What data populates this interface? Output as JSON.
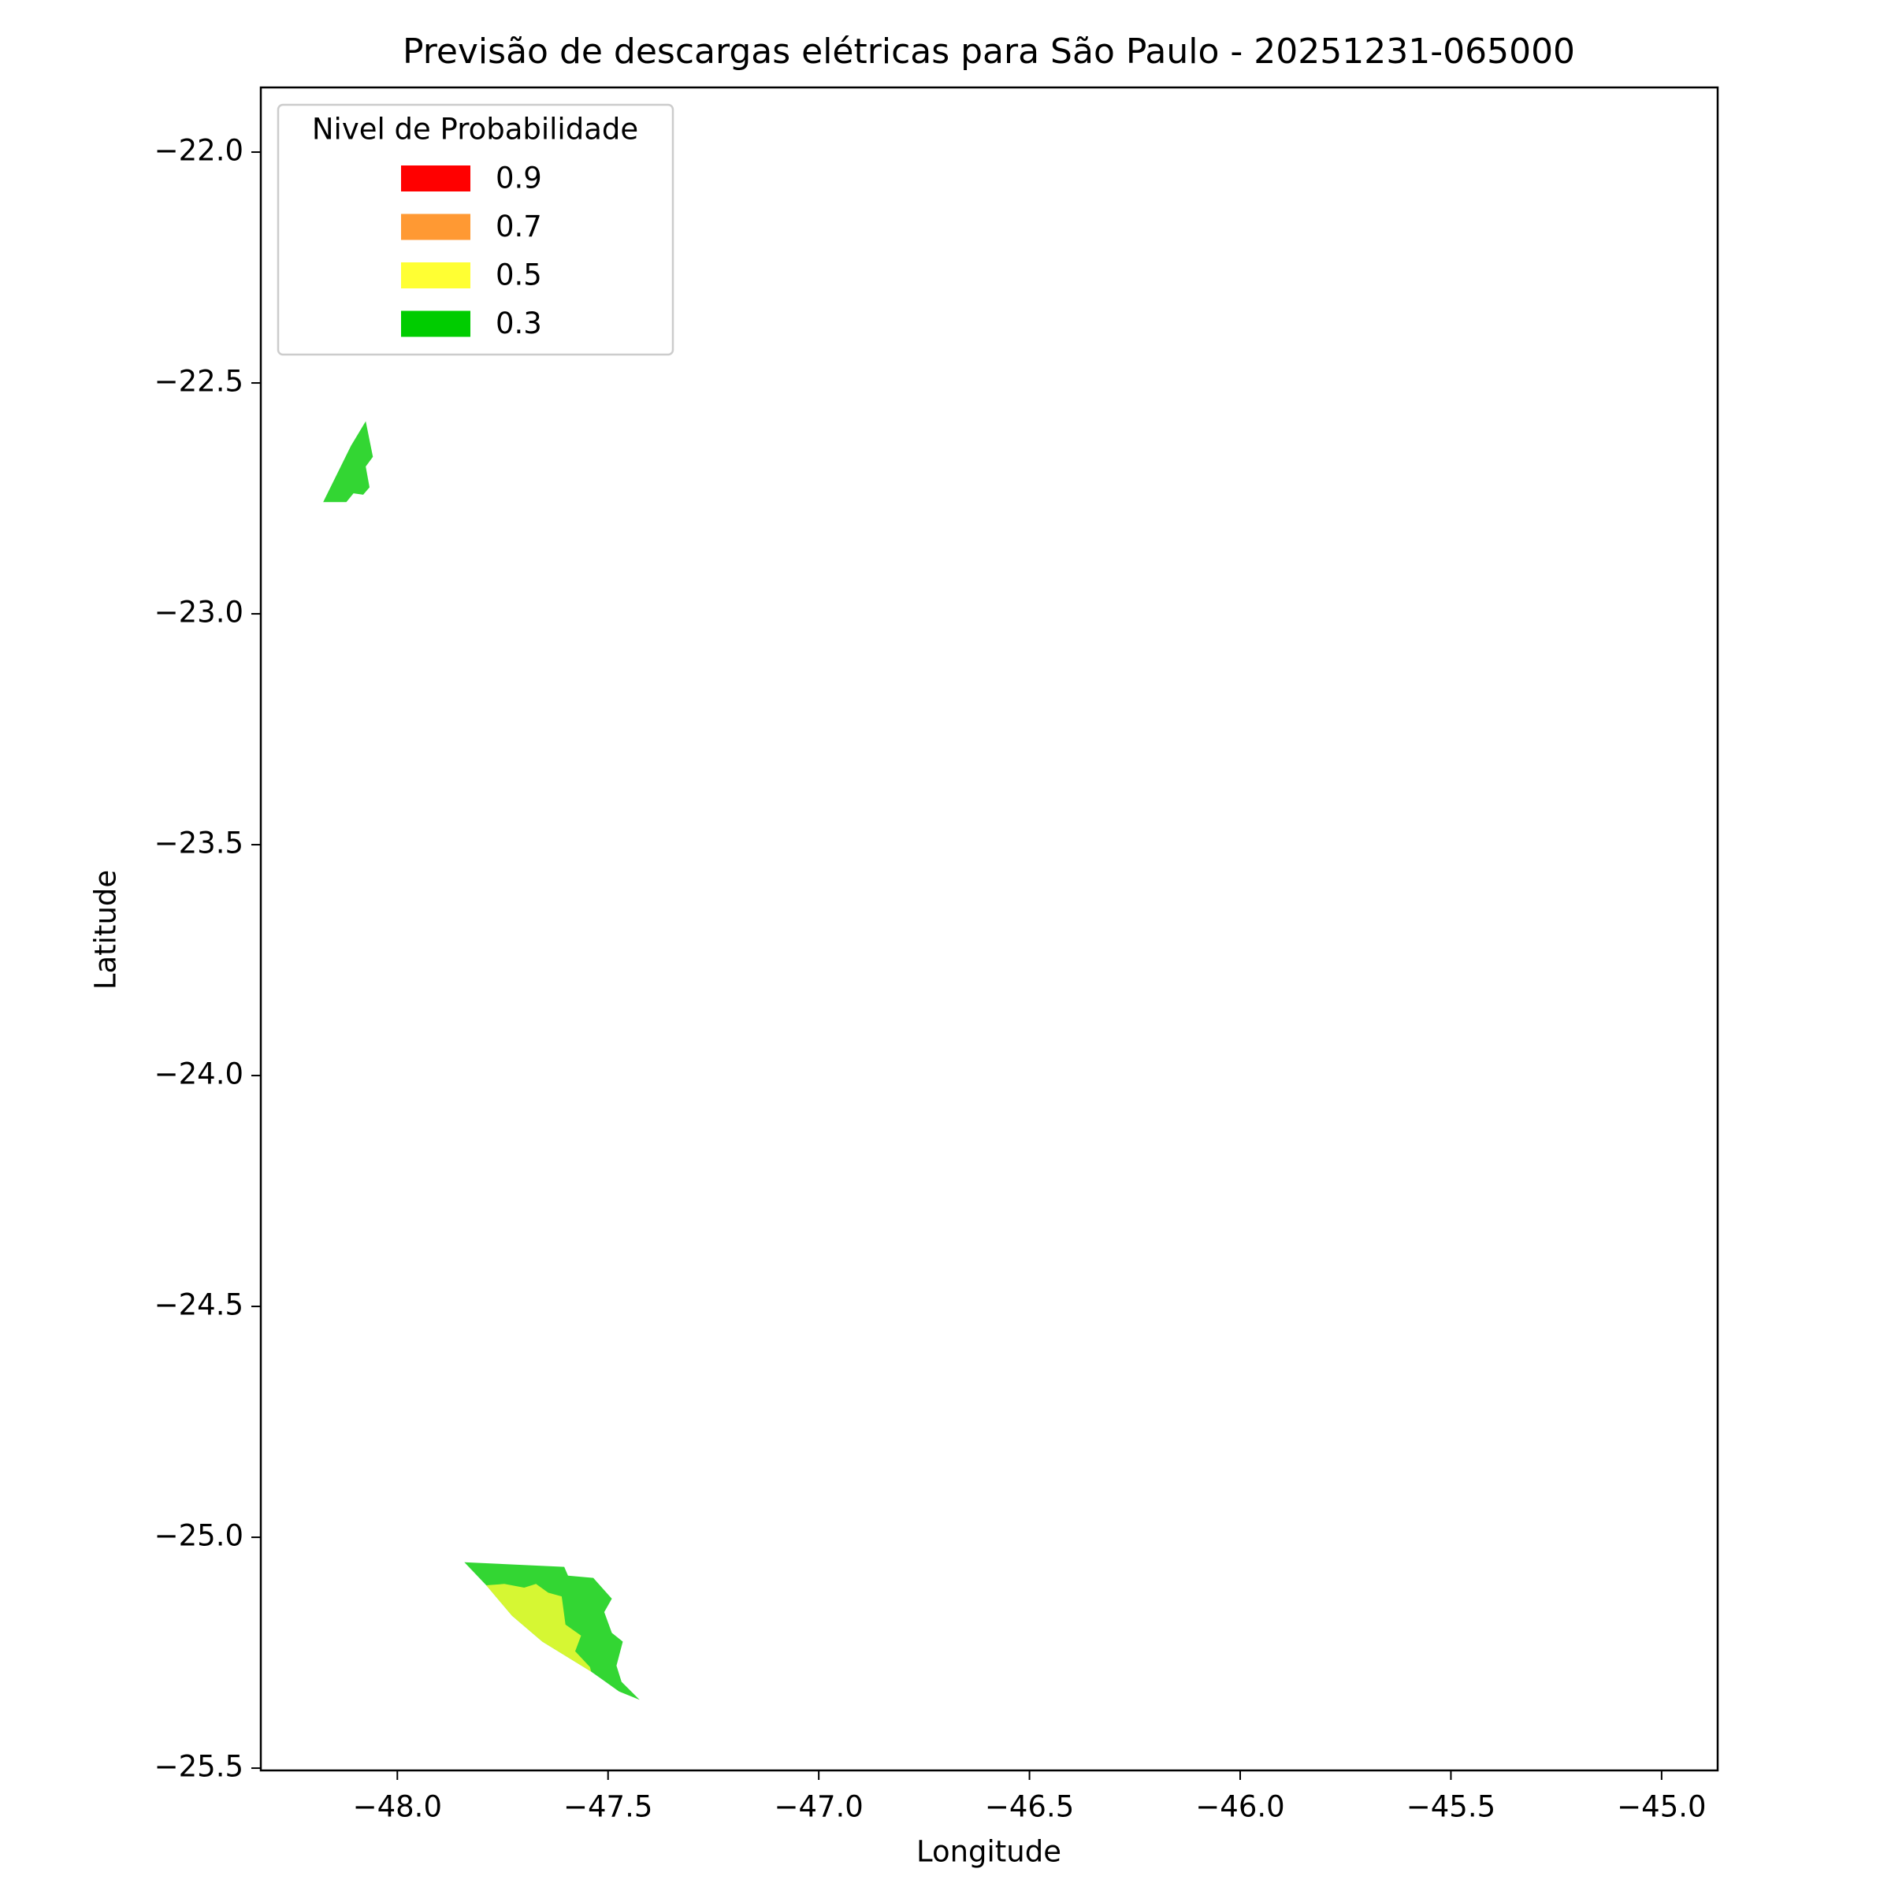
{
  "chart_data": {
    "type": "polygon",
    "title": "Previsão de descargas elétricas para São Paulo - 20251231-065000",
    "x_label": "Longitude",
    "y_label": "Latitude",
    "legend_title": "Nivel de Probabilidade",
    "legend": "upper left",
    "fill_opacity": 0.8,
    "xlim": [
      -48.324,
      -44.867
    ],
    "ylim": [
      -25.505,
      -21.86
    ],
    "xticks": [
      {
        "value": -48.0,
        "label": "−48.0"
      },
      {
        "value": -47.5,
        "label": "−47.5"
      },
      {
        "value": -47.0,
        "label": "−47.0"
      },
      {
        "value": -46.5,
        "label": "−46.5"
      },
      {
        "value": -46.0,
        "label": "−46.0"
      },
      {
        "value": -45.5,
        "label": "−45.5"
      },
      {
        "value": -45.0,
        "label": "−45.0"
      }
    ],
    "yticks": [
      {
        "value": -22.0,
        "label": "−22.0"
      },
      {
        "value": -22.5,
        "label": "−22.5"
      },
      {
        "value": -23.0,
        "label": "−23.0"
      },
      {
        "value": -23.5,
        "label": "−23.5"
      },
      {
        "value": -24.0,
        "label": "−24.0"
      },
      {
        "value": -24.5,
        "label": "−24.5"
      },
      {
        "value": -25.0,
        "label": "−25.0"
      },
      {
        "value": -25.5,
        "label": "−25.5"
      }
    ],
    "series": [
      {
        "name": "0.9",
        "color": "#ff0000",
        "polygons": []
      },
      {
        "name": "0.7",
        "color": "#ff9933",
        "polygons": []
      },
      {
        "name": "0.5",
        "color": "#ffff33",
        "polygons": [
          {
            "x": [
              -47.789,
              -47.746,
              -47.699,
              -47.671,
              -47.642,
              -47.61,
              -47.601,
              -47.564,
              -47.578,
              -47.543,
              -47.54,
              -47.656,
              -47.728
            ],
            "y": [
              -25.104,
              -25.101,
              -25.109,
              -25.101,
              -25.12,
              -25.128,
              -25.189,
              -25.213,
              -25.247,
              -25.281,
              -25.291,
              -25.226,
              -25.17
            ]
          }
        ]
      },
      {
        "name": "0.3",
        "color": "#00cc00",
        "polygons": [
          {
            "x": [
              -48.176,
              -48.121,
              -48.104,
              -48.081,
              -48.066,
              -48.075,
              -48.058,
              -48.075,
              -48.11
            ],
            "y": [
              -22.758,
              -22.758,
              -22.739,
              -22.742,
              -22.726,
              -22.681,
              -22.66,
              -22.583,
              -22.636
            ]
          },
          {
            "x": [
              -47.841,
              -47.604,
              -47.595,
              -47.535,
              -47.491,
              -47.509,
              -47.491,
              -47.465,
              -47.48,
              -47.468,
              -47.425,
              -47.474,
              -47.54,
              -47.656,
              -47.728,
              -47.789
            ],
            "y": [
              -25.054,
              -25.064,
              -25.083,
              -25.088,
              -25.133,
              -25.162,
              -25.207,
              -25.226,
              -25.278,
              -25.313,
              -25.352,
              -25.334,
              -25.291,
              -25.226,
              -25.17,
              -25.104
            ]
          }
        ]
      }
    ]
  }
}
